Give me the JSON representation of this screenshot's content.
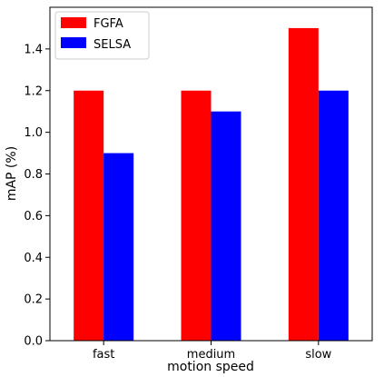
{
  "chart_data": {
    "type": "bar",
    "title": "",
    "xlabel": "motion speed",
    "ylabel": "mAP (%)",
    "categories": [
      "fast",
      "medium",
      "slow"
    ],
    "series": [
      {
        "name": "FGFA",
        "values": [
          1.2,
          1.2,
          1.5
        ],
        "color": "#ff0000"
      },
      {
        "name": "SELSA",
        "values": [
          0.9,
          1.1,
          1.2
        ],
        "color": "#0000ff"
      }
    ],
    "ylim": [
      0,
      1.6
    ],
    "yticks": [
      "0.0",
      "0.2",
      "0.4",
      "0.6",
      "0.8",
      "1.0",
      "1.2",
      "1.4"
    ],
    "grid": false,
    "legend_position": "top-left"
  }
}
